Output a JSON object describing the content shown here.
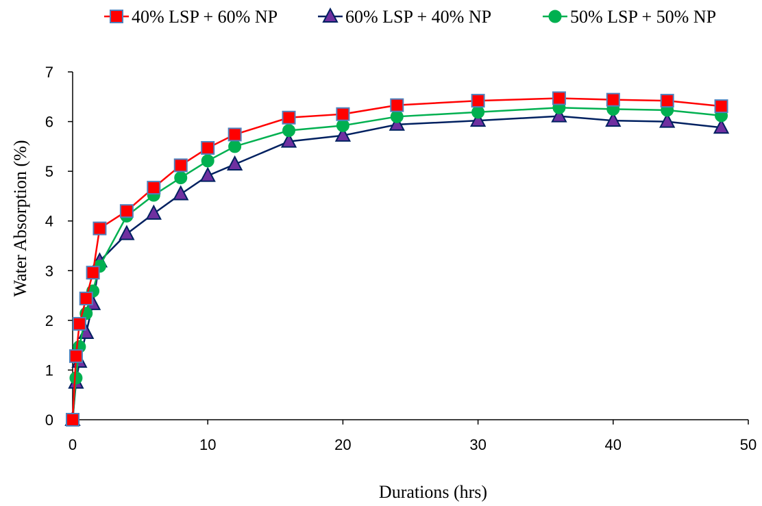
{
  "chart_data": {
    "type": "line",
    "xlabel": "Durations (hrs)",
    "ylabel": "Water Absorption  (%)",
    "xlim": [
      0,
      50
    ],
    "ylim": [
      0,
      7
    ],
    "x_ticks": [
      "0",
      "10",
      "20",
      "30",
      "40",
      "50"
    ],
    "y_ticks": [
      "0",
      "1",
      "2",
      "3",
      "4",
      "5",
      "6",
      "7"
    ],
    "grid": false,
    "legend_position": "top",
    "series": [
      {
        "name": "40% LSP + 60% NP",
        "color": "#ff0000",
        "marker_fill": "#ff0000",
        "marker_stroke": "#4f81bd",
        "marker": "square",
        "x": [
          0,
          0.25,
          0.5,
          1,
          1.5,
          2,
          4,
          6,
          8,
          10,
          12,
          16,
          20,
          24,
          30,
          36,
          40,
          44,
          48
        ],
        "y": [
          0,
          1.28,
          1.93,
          2.44,
          2.96,
          3.85,
          4.2,
          4.67,
          5.12,
          5.47,
          5.74,
          6.08,
          6.15,
          6.33,
          6.42,
          6.47,
          6.44,
          6.42,
          6.31
        ]
      },
      {
        "name": "60% LSP + 40% NP",
        "color": "#002060",
        "marker_fill": "#7030a0",
        "marker_stroke": "#002060",
        "marker": "triangle",
        "x": [
          0,
          0.25,
          0.5,
          1,
          1.5,
          2,
          4,
          6,
          8,
          10,
          12,
          16,
          20,
          24,
          30,
          36,
          40,
          44,
          48
        ],
        "y": [
          0,
          0.75,
          1.17,
          1.75,
          2.33,
          3.19,
          3.74,
          4.15,
          4.54,
          4.91,
          5.14,
          5.6,
          5.72,
          5.94,
          6.02,
          6.11,
          6.02,
          6.0,
          5.88
        ]
      },
      {
        "name": "50% LSP + 50% NP",
        "color": "#00b050",
        "marker_fill": "#00b050",
        "marker_stroke": "#00b050",
        "marker": "circle",
        "x": [
          0,
          0.25,
          0.5,
          1,
          1.5,
          2,
          4,
          6,
          8,
          10,
          12,
          16,
          20,
          24,
          30,
          36,
          40,
          44,
          48
        ],
        "y": [
          0,
          0.84,
          1.47,
          2.14,
          2.59,
          3.09,
          4.1,
          4.52,
          4.87,
          5.21,
          5.5,
          5.82,
          5.92,
          6.1,
          6.19,
          6.28,
          6.25,
          6.23,
          6.12
        ]
      }
    ]
  }
}
